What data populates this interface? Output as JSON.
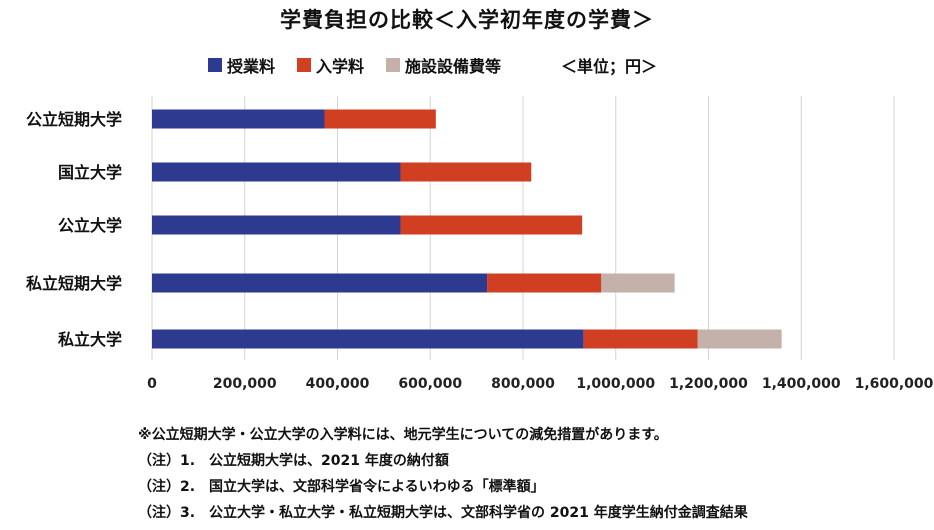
{
  "chart_data": {
    "type": "bar",
    "orientation": "horizontal",
    "stacked": true,
    "title": "学費負担の比較＜入学初年度の学費＞",
    "unit_label": "＜単位；円＞",
    "categories": [
      "公立短期大学",
      "国立大学",
      "公立大学",
      "私立短期大学",
      "私立大学"
    ],
    "series": [
      {
        "name": "授業料",
        "color": "#2e3a8f",
        "values": [
          372000,
          535800,
          535800,
          722500,
          930900
        ]
      },
      {
        "name": "入学料",
        "color": "#d13f22",
        "values": [
          240000,
          282000,
          391800,
          246400,
          245900
        ]
      },
      {
        "name": "施設設備費等",
        "color": "#c4b1aa",
        "values": [
          0,
          0,
          0,
          158000,
          180900
        ]
      }
    ],
    "xlim": [
      0,
      1600000
    ],
    "xticks": [
      "0",
      "200,000",
      "400,000",
      "600,000",
      "800,000",
      "1,000,000",
      "1,200,000",
      "1,400,000",
      "1,600,000"
    ],
    "grid": true,
    "legend_position": "top"
  },
  "notes": [
    "※公立短期大学・公立大学の入学料には、地元学生についての減免措置があります。",
    "（注）1.　公立短期大学は、2021 年度の納付額",
    "（注）2.　国立大学は、文部科学省令によるいわゆる「標準額」",
    "（注）3.　公立大学・私立大学・私立短期大学は、文部科学省の 2021 年度学生納付金調査結果"
  ]
}
